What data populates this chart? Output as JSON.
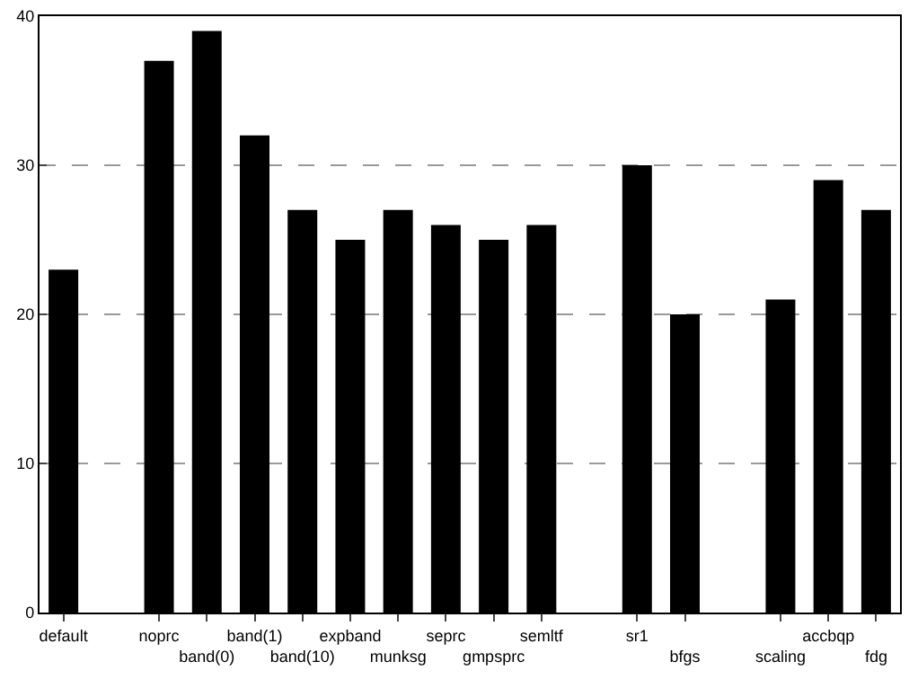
{
  "chart_data": {
    "type": "bar",
    "categories": [
      "default",
      null,
      "noprc",
      "band(0)",
      "band(1)",
      "band(10)",
      "expband",
      "munksg",
      "seprc",
      "gmpsprc",
      "semltf",
      null,
      "sr1",
      "bfgs",
      null,
      "scaling",
      "accbqp",
      "fdg"
    ],
    "values": [
      23,
      null,
      37,
      39,
      32,
      27,
      25,
      27,
      26,
      25,
      26,
      null,
      30,
      20,
      null,
      21,
      29,
      27
    ],
    "color": "#000000",
    "ylim": [
      0,
      40
    ],
    "yticks": [
      0,
      10,
      20,
      30,
      40
    ],
    "grid": "y",
    "legend": false
  }
}
